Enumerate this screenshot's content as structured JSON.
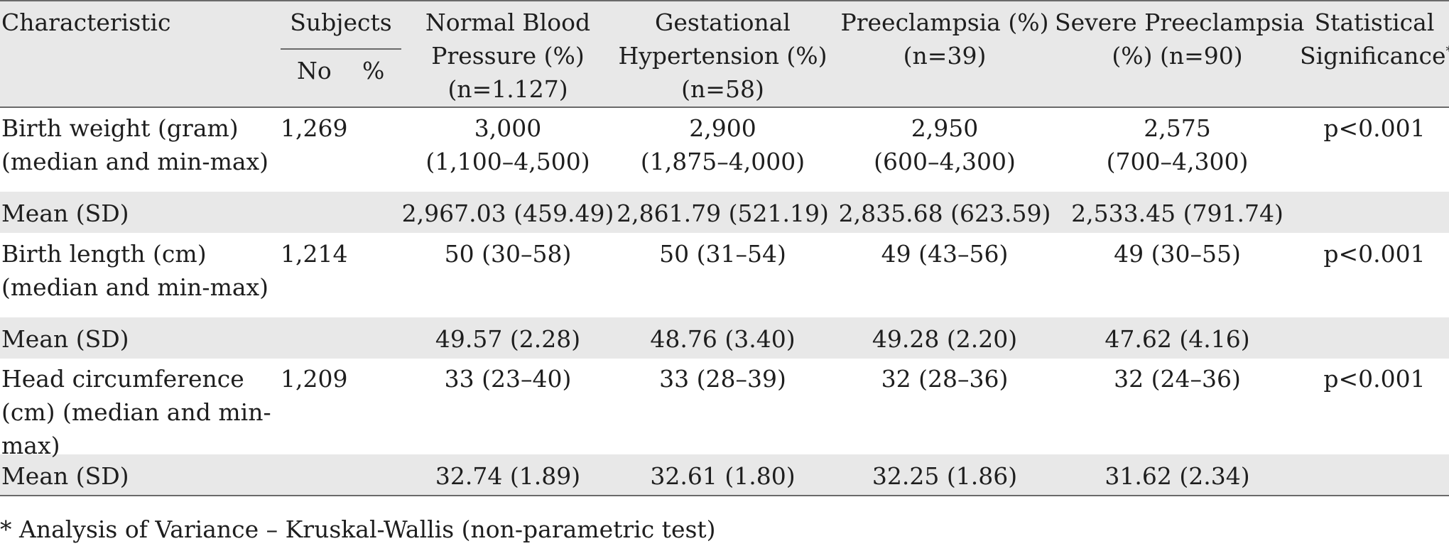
{
  "header": {
    "characteristic": "Characteristic",
    "subjects": "Subjects",
    "no": "No",
    "pct": "%",
    "normal": [
      "Normal Blood",
      "Pressure (%)",
      "(n=1.127)"
    ],
    "gestational": [
      "Gestational",
      "Hypertension (%)",
      "(n=58)"
    ],
    "preeclampsia": [
      "Preeclampsia (%)",
      "(n=39)"
    ],
    "severe": [
      "Severe Preeclampsia",
      "(%) (n=90)"
    ],
    "significance": [
      "Statistical",
      "Significance"
    ],
    "significance_mark": "*"
  },
  "rows": [
    {
      "label": [
        "Birth weight (gram)",
        "(median and min-max)"
      ],
      "no": "1,269",
      "normal": [
        "3,000",
        "(1,100–4,500)"
      ],
      "gestational": [
        "2,900",
        "(1,875–4,000)"
      ],
      "preeclampsia": [
        "2,950",
        "(600–4,300)"
      ],
      "severe": [
        "2,575",
        "(700–4,300)"
      ],
      "significance": "p<0.001"
    },
    {
      "label": [
        "Mean (SD)"
      ],
      "normal": [
        "2,967.03 (459.49)"
      ],
      "gestational": [
        "2,861.79 (521.19)"
      ],
      "preeclampsia": [
        "2,835.68 (623.59)"
      ],
      "severe": [
        "2,533.45 (791.74)"
      ]
    },
    {
      "label": [
        "Birth length (cm)",
        "(median and min-max)"
      ],
      "no": "1,214",
      "normal": [
        "50 (30–58)"
      ],
      "gestational": [
        "50 (31–54)"
      ],
      "preeclampsia": [
        "49 (43–56)"
      ],
      "severe": [
        "49 (30–55)"
      ],
      "significance": "p<0.001"
    },
    {
      "label": [
        "Mean (SD)"
      ],
      "normal": [
        "49.57 (2.28)"
      ],
      "gestational": [
        "48.76 (3.40)"
      ],
      "preeclampsia": [
        "49.28 (2.20)"
      ],
      "severe": [
        "47.62 (4.16)"
      ]
    },
    {
      "label": [
        "Head circumference",
        "(cm) (median and min-",
        "max)"
      ],
      "no": "1,209",
      "normal": [
        "33 (23–40)"
      ],
      "gestational": [
        "33 (28–39)"
      ],
      "preeclampsia": [
        "32 (28–36)"
      ],
      "severe": [
        "32 (24–36)"
      ],
      "significance": "p<0.001"
    },
    {
      "label": [
        "Mean (SD)"
      ],
      "normal": [
        "32.74 (1.89)"
      ],
      "gestational": [
        "32.61 (1.80)"
      ],
      "preeclampsia": [
        "32.25 (1.86)"
      ],
      "severe": [
        "31.62 (2.34)"
      ]
    }
  ],
  "footnote": "* Analysis of Variance – Kruskal-Wallis (non-parametric test)",
  "colors": {
    "band": "#e8e8e8",
    "rule": "#6a6a6a",
    "text": "#1e1e1e"
  }
}
